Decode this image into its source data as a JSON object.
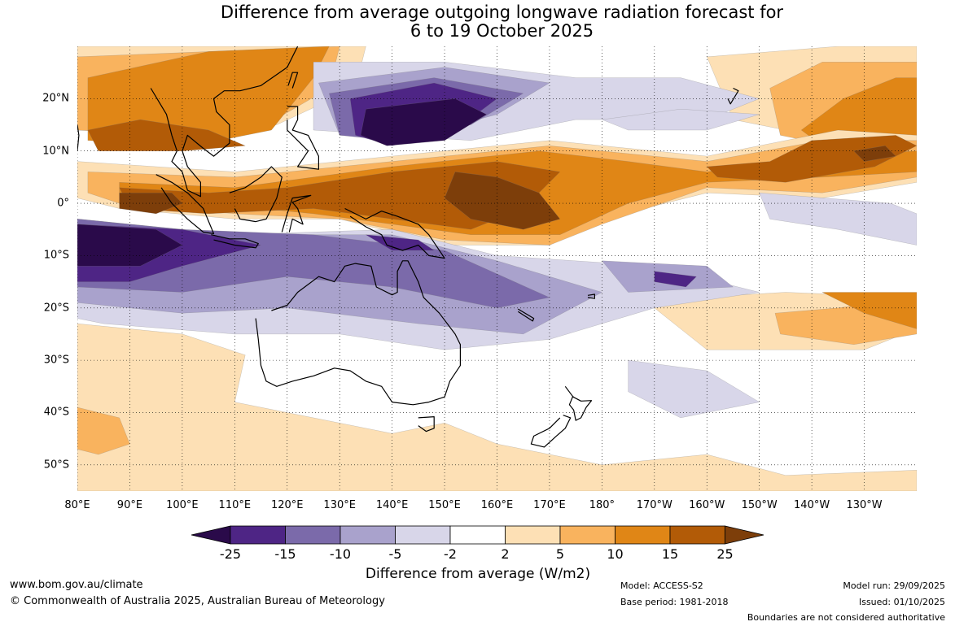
{
  "title": {
    "line1": "Difference from average outgoing longwave radiation forecast for",
    "line2": "6 to 19 October 2025"
  },
  "map": {
    "lon_range": [
      80,
      240
    ],
    "lat_range": [
      -55,
      30
    ],
    "x_ticks": [
      {
        "lon": 80,
        "label": "80°E"
      },
      {
        "lon": 90,
        "label": "90°E"
      },
      {
        "lon": 100,
        "label": "100°E"
      },
      {
        "lon": 110,
        "label": "110°E"
      },
      {
        "lon": 120,
        "label": "120°E"
      },
      {
        "lon": 130,
        "label": "130°E"
      },
      {
        "lon": 140,
        "label": "140°E"
      },
      {
        "lon": 150,
        "label": "150°E"
      },
      {
        "lon": 160,
        "label": "160°E"
      },
      {
        "lon": 170,
        "label": "170°E"
      },
      {
        "lon": 180,
        "label": "180°"
      },
      {
        "lon": 190,
        "label": "170°W"
      },
      {
        "lon": 200,
        "label": "160°W"
      },
      {
        "lon": 210,
        "label": "150°W"
      },
      {
        "lon": 220,
        "label": "140°W"
      },
      {
        "lon": 230,
        "label": "130°W"
      }
    ],
    "y_ticks": [
      {
        "lat": 20,
        "label": "20°N"
      },
      {
        "lat": 10,
        "label": "10°N"
      },
      {
        "lat": 0,
        "label": "0°"
      },
      {
        "lat": -10,
        "label": "10°S"
      },
      {
        "lat": -20,
        "label": "20°S"
      },
      {
        "lat": -30,
        "label": "30°S"
      },
      {
        "lat": -40,
        "label": "40°S"
      },
      {
        "lat": -50,
        "label": "50°S"
      }
    ]
  },
  "colorbar": {
    "colors": {
      "lt_-25": "#2a0a4a",
      "-25_-15": "#4e2585",
      "-15_-10": "#7b6aaa",
      "-10_-5": "#a9a2cc",
      "-5_-2": "#d8d6e9",
      "-2_2": "#ffffff",
      "2_5": "#fde0b5",
      "5_10": "#f9b35e",
      "10_15": "#e08616",
      "15_25": "#b25b07",
      "gt_25": "#7d3e0a"
    },
    "labels": [
      {
        "value": -25,
        "text": "-25"
      },
      {
        "value": -15,
        "text": "-15"
      },
      {
        "value": -10,
        "text": "-10"
      },
      {
        "value": -5,
        "text": "-5"
      },
      {
        "value": -2,
        "text": "-2"
      },
      {
        "value": 2,
        "text": "2"
      },
      {
        "value": 5,
        "text": "5"
      },
      {
        "value": 10,
        "text": "10"
      },
      {
        "value": 15,
        "text": "15"
      },
      {
        "value": 25,
        "text": "25"
      }
    ],
    "title": "Difference from average (W/m2)"
  },
  "footer": {
    "url": "www.bom.gov.au/climate",
    "copyright": "© Commonwealth of Australia 2025, Australian Bureau of Meteorology",
    "model": "Model: ACCESS-S2",
    "base_period": "Base period: 1981-2018",
    "model_run": "Model run: 29/09/2025",
    "issued": "Issued: 01/10/2025",
    "disclaimer": "Boundaries are not considered authoritative"
  }
}
